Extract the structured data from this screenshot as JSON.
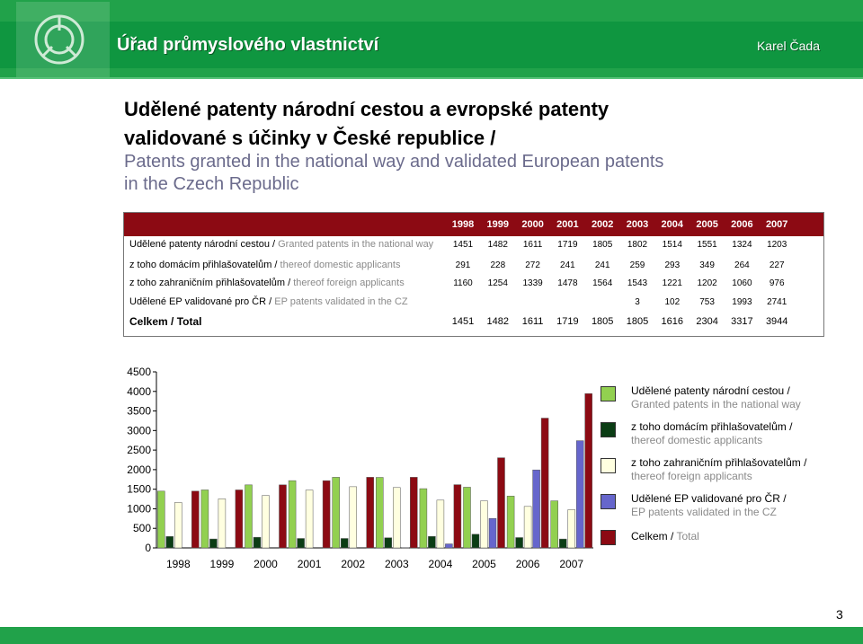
{
  "header": {
    "app_title": "Úřad průmyslového vlastnictví",
    "author": "Karel Čada"
  },
  "heading": {
    "line1": "Udělené patenty národní cestou a evropské patenty",
    "line2": "validované s účinky v České republice /",
    "sub1": "Patents granted in the national way and validated European patents",
    "sub2": "in the Czech Republic"
  },
  "table": {
    "years": [
      "1998",
      "1999",
      "2000",
      "2001",
      "2002",
      "2003",
      "2004",
      "2005",
      "2006",
      "2007"
    ],
    "rows": [
      {
        "label_cz": "Udělené patenty národní cestou / ",
        "label_en": "Granted patents in the national way",
        "values": [
          "1451",
          "1482",
          "1611",
          "1719",
          "1805",
          "1802",
          "1514",
          "1551",
          "1324",
          "1203"
        ]
      },
      {
        "label_cz": "z toho domácím přihlašovatelům / ",
        "label_en": "thereof domestic applicants",
        "values": [
          "291",
          "228",
          "272",
          "241",
          "241",
          "259",
          "293",
          "349",
          "264",
          "227"
        ]
      },
      {
        "label_cz": "z toho zahraničním přihlašovatelům / ",
        "label_en": "thereof foreign applicants",
        "values": [
          "1160",
          "1254",
          "1339",
          "1478",
          "1564",
          "1543",
          "1221",
          "1202",
          "1060",
          "976"
        ]
      },
      {
        "label_cz": "Udělené EP validované pro ČR / ",
        "label_en": "EP patents validated in the CZ",
        "values": [
          "",
          "",
          "",
          "",
          "",
          "3",
          "102",
          "753",
          "1993",
          "2741"
        ]
      },
      {
        "label_cz": "Celkem / Total",
        "label_en": "",
        "values": [
          "1451",
          "1482",
          "1611",
          "1719",
          "1805",
          "1805",
          "1616",
          "2304",
          "3317",
          "3944"
        ]
      }
    ]
  },
  "chart_data": {
    "type": "bar",
    "categories": [
      "1998",
      "1999",
      "2000",
      "2001",
      "2002",
      "2003",
      "2004",
      "2005",
      "2006",
      "2007"
    ],
    "ylim": [
      0,
      4500
    ],
    "yticks": [
      "0",
      "500",
      "1000",
      "1500",
      "2000",
      "2500",
      "3000",
      "3500",
      "4000",
      "4500"
    ],
    "series": [
      {
        "name": "Udělené patenty národní cestou / Granted patents in the national way",
        "color": "#92d050",
        "values": [
          1451,
          1482,
          1611,
          1719,
          1805,
          1802,
          1514,
          1551,
          1324,
          1203
        ]
      },
      {
        "name": "z toho domácím přihlašovatelům / thereof domestic applicants",
        "color": "#0b3d14",
        "values": [
          291,
          228,
          272,
          241,
          241,
          259,
          293,
          349,
          264,
          227
        ]
      },
      {
        "name": "z toho zahraničním přihlašovatelům / thereof foreign applicants",
        "color": "#ffffe0",
        "values": [
          1160,
          1254,
          1339,
          1478,
          1564,
          1543,
          1221,
          1202,
          1060,
          976
        ]
      },
      {
        "name": "Udělené EP validované pro ČR / EP patents validated in the CZ",
        "color": "#6666cc",
        "values": [
          0,
          0,
          0,
          0,
          0,
          3,
          102,
          753,
          1993,
          2741
        ]
      },
      {
        "name": "Celkem / Total",
        "color": "#8c0a13",
        "values": [
          1451,
          1482,
          1611,
          1719,
          1805,
          1805,
          1616,
          2304,
          3317,
          3944
        ]
      }
    ]
  },
  "legend": [
    {
      "cz": "Udělené patenty národní cestou /",
      "en": "Granted patents in the national way",
      "color": "#92d050"
    },
    {
      "cz": "z toho domácím přihlašovatelům /",
      "en": "thereof domestic applicants",
      "color": "#0b3d14"
    },
    {
      "cz": "z toho zahraničním přihlašovatelům /",
      "en": "thereof foreign applicants",
      "color": "#ffffe0"
    },
    {
      "cz": "Udělené EP validované pro ČR /",
      "en": "EP patents validated in the CZ",
      "color": "#6666cc"
    },
    {
      "cz": "Celkem /",
      "en": "Total",
      "color": "#8c0a13"
    }
  ],
  "page_number": "3",
  "colors": {
    "header_green": "#21a24a",
    "table_header": "#8c0a13"
  }
}
